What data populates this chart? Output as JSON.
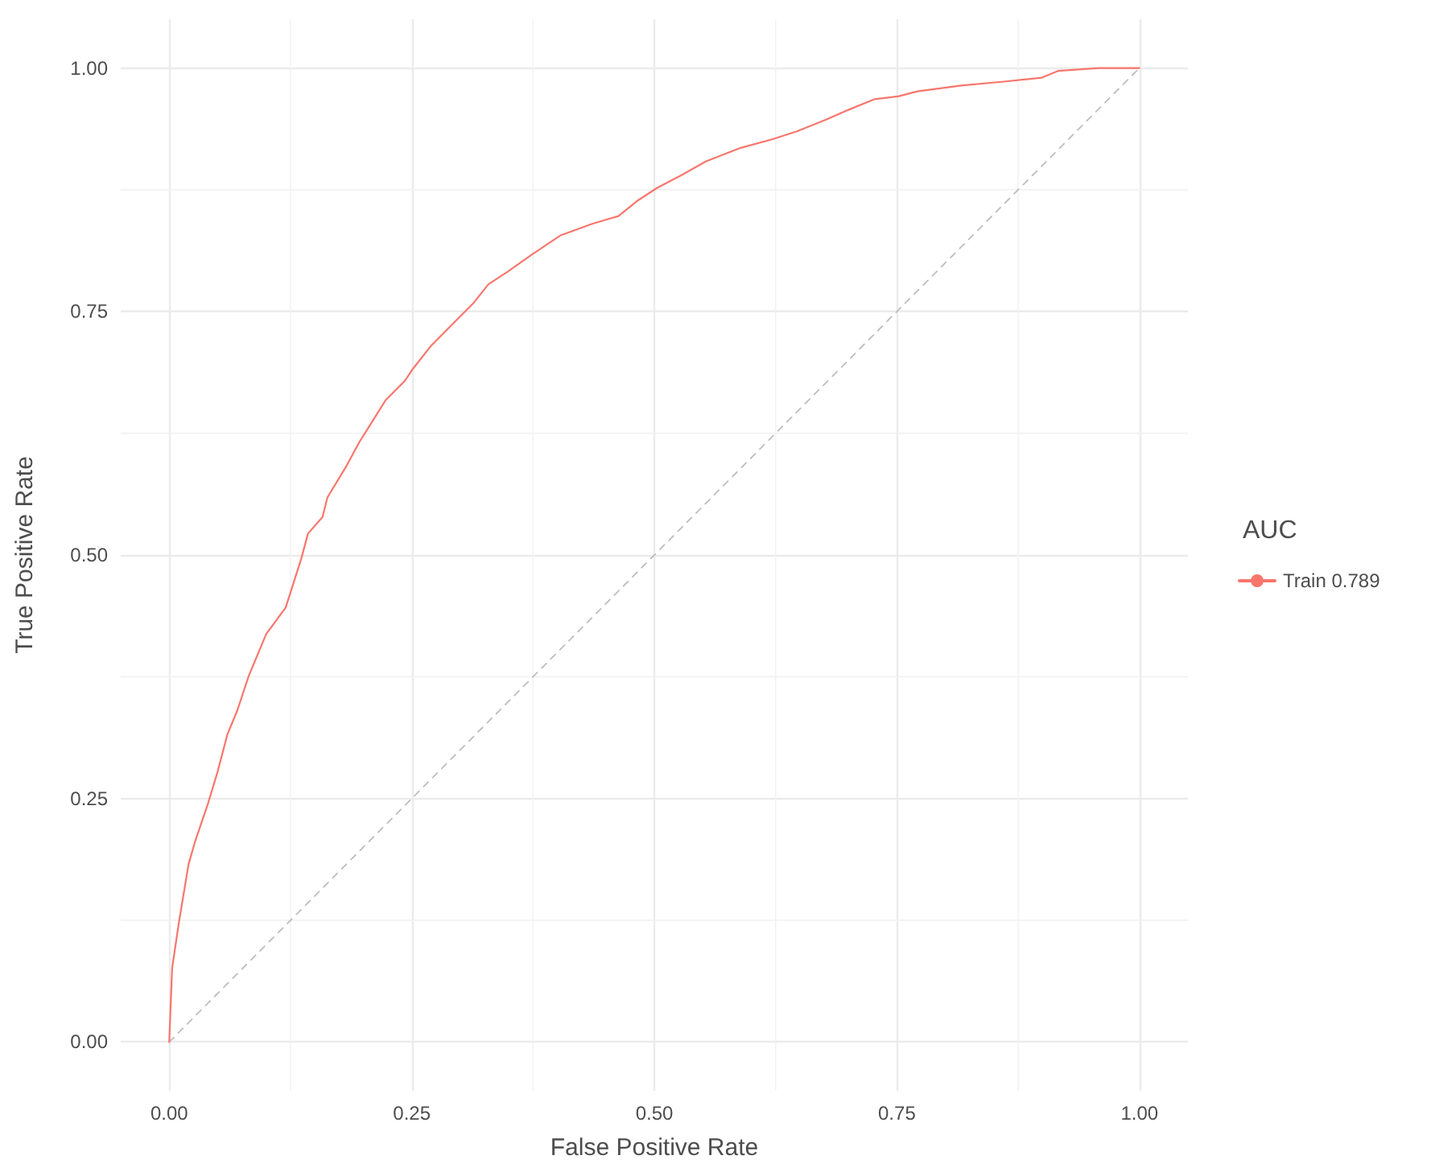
{
  "chart_data": {
    "type": "line",
    "xlabel": "False Positive Rate",
    "ylabel": "True Positive Rate",
    "legend_title": "AUC",
    "xlim": [
      -0.05,
      1.05
    ],
    "ylim": [
      -0.05,
      1.05
    ],
    "xticks": [
      {
        "value": 0,
        "label": "0.00"
      },
      {
        "value": 0.25,
        "label": "0.25"
      },
      {
        "value": 0.5,
        "label": "0.50"
      },
      {
        "value": 0.75,
        "label": "0.75"
      },
      {
        "value": 1,
        "label": "1.00"
      }
    ],
    "yticks": [
      {
        "value": 0,
        "label": "0.00"
      },
      {
        "value": 0.25,
        "label": "0.25"
      },
      {
        "value": 0.5,
        "label": "0.50"
      },
      {
        "value": 0.75,
        "label": "0.75"
      },
      {
        "value": 1,
        "label": "1.00"
      }
    ],
    "grid": true,
    "legend": "right",
    "marker": "none",
    "series": [
      {
        "name": "Train 0.789",
        "color": "#f8766d",
        "line_style": "solid",
        "x": [
          0,
          0.003,
          0.01,
          0.02,
          0.027,
          0.04,
          0.05,
          0.06,
          0.07,
          0.082,
          0.1,
          0.12,
          0.136,
          0.143,
          0.158,
          0.163,
          0.183,
          0.196,
          0.213,
          0.223,
          0.243,
          0.251,
          0.27,
          0.293,
          0.313,
          0.329,
          0.349,
          0.373,
          0.403,
          0.436,
          0.463,
          0.483,
          0.503,
          0.528,
          0.553,
          0.589,
          0.622,
          0.647,
          0.677,
          0.7,
          0.727,
          0.752,
          0.771,
          0.816,
          0.86,
          0.899,
          0.916,
          0.958,
          1
        ],
        "values": [
          0,
          0.076,
          0.123,
          0.183,
          0.207,
          0.245,
          0.278,
          0.316,
          0.34,
          0.376,
          0.419,
          0.446,
          0.496,
          0.522,
          0.539,
          0.559,
          0.592,
          0.616,
          0.643,
          0.659,
          0.679,
          0.691,
          0.715,
          0.738,
          0.758,
          0.778,
          0.791,
          0.808,
          0.828,
          0.84,
          0.848,
          0.864,
          0.877,
          0.89,
          0.904,
          0.918,
          0.927,
          0.935,
          0.947,
          0.957,
          0.968,
          0.971,
          0.976,
          0.982,
          0.986,
          0.99,
          0.997,
          1,
          1
        ]
      },
      {
        "color": "#bdbdbd",
        "line_style": "dashed",
        "x": [
          0,
          1
        ],
        "values": [
          0,
          1
        ]
      }
    ]
  }
}
